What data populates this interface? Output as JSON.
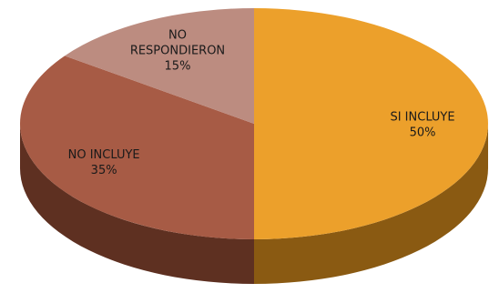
{
  "chart_data": {
    "type": "pie",
    "style": "3d",
    "slices": [
      {
        "label_lines": [
          "SI INCLUYE"
        ],
        "value": 50,
        "value_label": "50%",
        "top_color": "#ECA02B",
        "side_color": "#8A5A12"
      },
      {
        "label_lines": [
          "NO INCLUYE"
        ],
        "value": 35,
        "value_label": "35%",
        "top_color": "#A75B45",
        "side_color": "#5E3021"
      },
      {
        "label_lines": [
          "NO",
          "RESPONDIERON"
        ],
        "value": 15,
        "value_label": "15%",
        "top_color": "#BC8C80",
        "side_color": "#7A5349"
      }
    ]
  }
}
